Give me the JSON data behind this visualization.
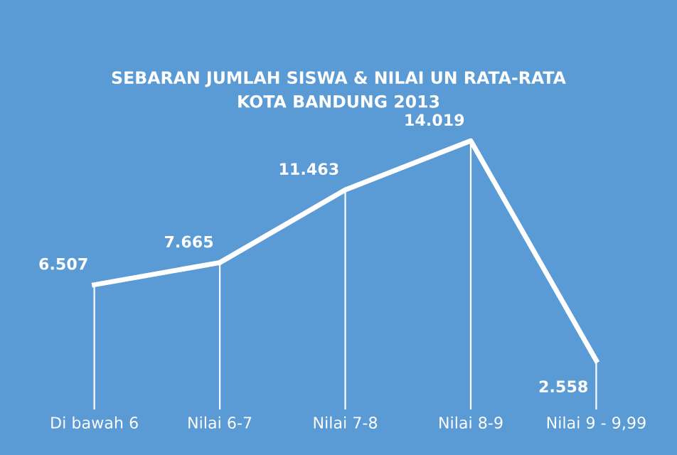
{
  "chart_data": {
    "type": "line",
    "title": "SEBARAN JUMLAH SISWA & NILAI UN RATA-RATA\nKOTA BANDUNG 2013",
    "categories": [
      "Di bawah 6",
      "Nilai 6-7",
      "Nilai 7-8",
      "Nilai 8-9",
      "Nilai 9 - 9,99"
    ],
    "series": [
      {
        "color": "#ffffff",
        "values": [
          6507,
          7665,
          11463,
          14019,
          2558
        ],
        "value_labels": [
          "6.507",
          "7.665",
          "11.463",
          "14.019",
          "2.558"
        ]
      }
    ],
    "legend": false,
    "marker": "none",
    "line_style": "solid",
    "tick_labels": "x"
  }
}
